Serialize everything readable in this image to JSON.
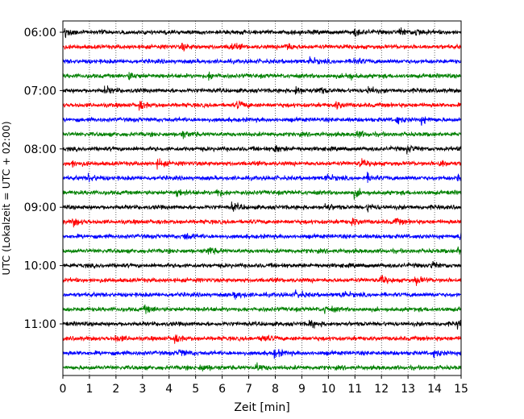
{
  "chart_data": {
    "type": "line",
    "title": "",
    "xlabel": "Zeit  [min]",
    "ylabel": "UTC (Lokalzeit = UTC + 02:00)",
    "xlim": [
      0,
      15
    ],
    "x_ticks": [
      0,
      1,
      2,
      3,
      4,
      5,
      6,
      7,
      8,
      9,
      10,
      11,
      12,
      13,
      14,
      15
    ],
    "grid": "vertical dotted lines at each minute",
    "y_tick_labels": [
      "06:00",
      "07:00",
      "08:00",
      "09:00",
      "10:00",
      "11:00"
    ],
    "trace_interval_minutes": 15,
    "trace_color_cycle": [
      "#000000",
      "#ff0000",
      "#0000ff",
      "#008000"
    ],
    "traces": [
      {
        "start": "06:00",
        "color": "#000000",
        "events_min": [
          0.1,
          11.0,
          12.7,
          13.3
        ]
      },
      {
        "start": "06:15",
        "color": "#ff0000",
        "events_min": [
          4.5,
          6.3,
          8.4
        ]
      },
      {
        "start": "06:30",
        "color": "#0000ff",
        "events_min": [
          9.3,
          11.0
        ]
      },
      {
        "start": "06:45",
        "color": "#008000",
        "events_min": [
          2.5,
          5.5,
          10.7
        ]
      },
      {
        "start": "07:00",
        "color": "#000000",
        "events_min": [
          1.6,
          8.8,
          9.6,
          11.5
        ]
      },
      {
        "start": "07:15",
        "color": "#ff0000",
        "events_min": [
          2.9,
          6.6,
          10.3
        ]
      },
      {
        "start": "07:30",
        "color": "#0000ff",
        "events_min": [
          12.6,
          13.5
        ]
      },
      {
        "start": "07:45",
        "color": "#008000",
        "events_min": [
          4.5,
          11.1
        ]
      },
      {
        "start": "08:00",
        "color": "#000000",
        "events_min": [
          8.0,
          13.0,
          15.0
        ]
      },
      {
        "start": "08:15",
        "color": "#ff0000",
        "events_min": [
          0.3,
          3.6,
          11.2,
          14.2
        ]
      },
      {
        "start": "08:30",
        "color": "#0000ff",
        "events_min": [
          1.0,
          9.9,
          11.5,
          14.9
        ]
      },
      {
        "start": "08:45",
        "color": "#008000",
        "events_min": [
          4.3,
          5.8,
          11.0
        ]
      },
      {
        "start": "09:00",
        "color": "#000000",
        "events_min": [
          6.4,
          9.9,
          11.5
        ]
      },
      {
        "start": "09:15",
        "color": "#ff0000",
        "events_min": [
          0.4,
          10.9,
          12.5
        ]
      },
      {
        "start": "09:30",
        "color": "#0000ff",
        "events_min": [
          4.6,
          14.9
        ]
      },
      {
        "start": "09:45",
        "color": "#008000",
        "events_min": [
          5.5,
          14.9
        ]
      },
      {
        "start": "10:00",
        "color": "#000000",
        "events_min": [
          13.9
        ]
      },
      {
        "start": "10:15",
        "color": "#ff0000",
        "events_min": [
          12.0,
          13.3
        ]
      },
      {
        "start": "10:30",
        "color": "#0000ff",
        "events_min": [
          6.5,
          8.8,
          10.5
        ]
      },
      {
        "start": "10:45",
        "color": "#008000",
        "events_min": [
          3.1,
          9.9
        ]
      },
      {
        "start": "11:00",
        "color": "#000000",
        "events_min": [
          9.3,
          14.9
        ]
      },
      {
        "start": "11:15",
        "color": "#ff0000",
        "events_min": [
          2.0,
          4.2,
          7.5
        ]
      },
      {
        "start": "11:30",
        "color": "#0000ff",
        "events_min": [
          4.4,
          8.0,
          14.0
        ]
      },
      {
        "start": "11:45",
        "color": "#008000",
        "events_min": [
          5.2,
          7.3
        ]
      }
    ]
  }
}
